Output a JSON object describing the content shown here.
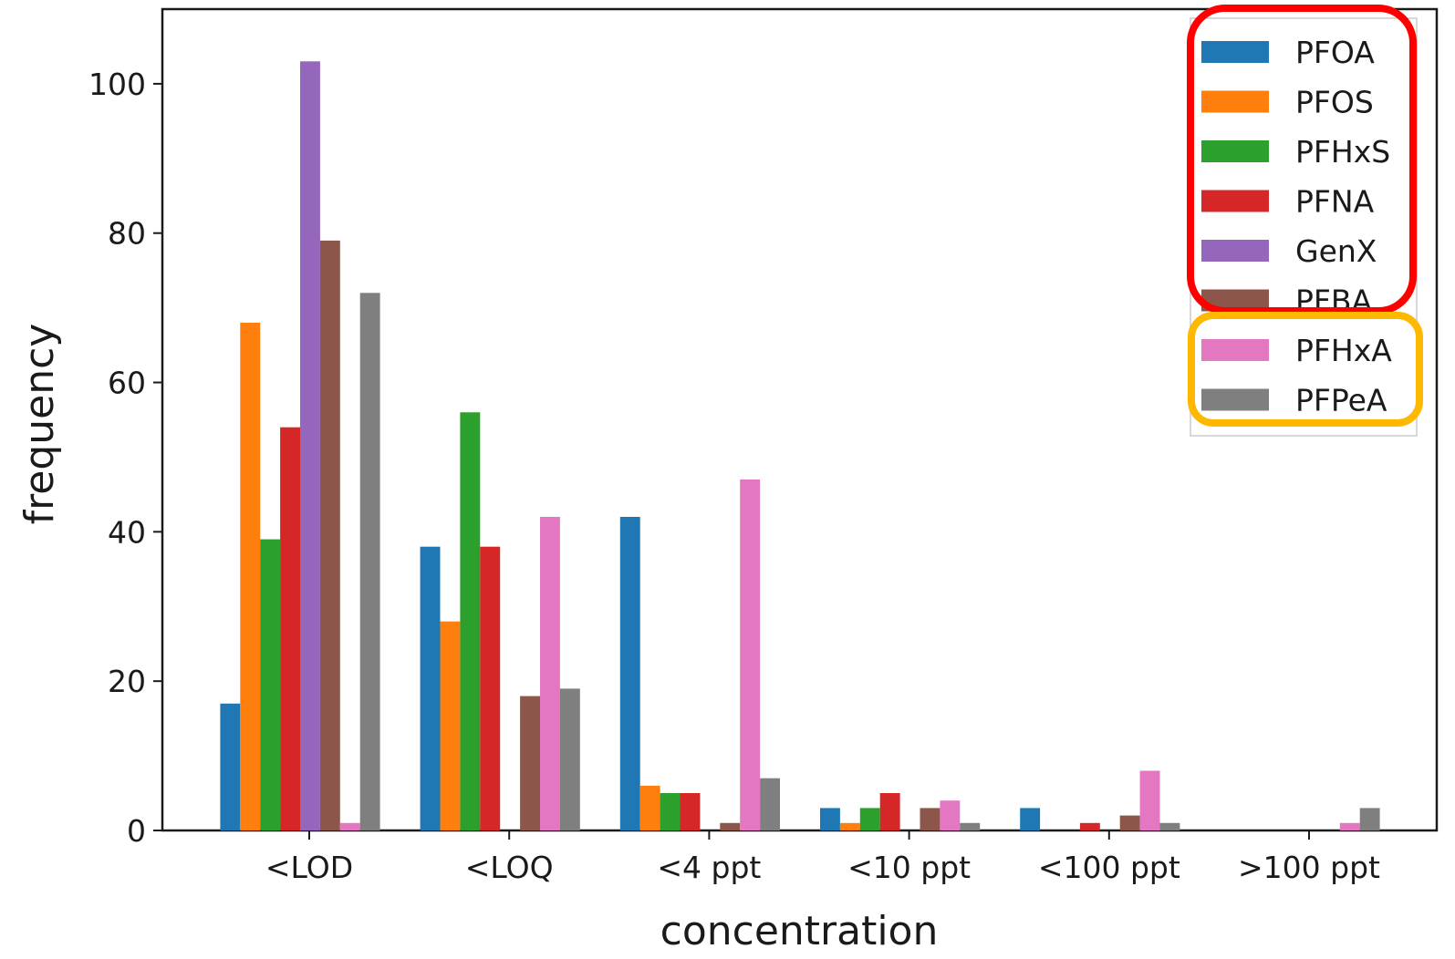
{
  "chart_data": {
    "type": "bar",
    "xlabel": "concentration",
    "ylabel": "frequency",
    "categories": [
      "<LOD",
      "<LOQ",
      "<4 ppt",
      "<10 ppt",
      "<100 ppt",
      ">100 ppt"
    ],
    "yticks": [
      0,
      20,
      40,
      60,
      80,
      100
    ],
    "ylim": [
      0,
      110
    ],
    "grid": false,
    "legend_position": "top-right",
    "series": [
      {
        "name": "PFOA",
        "color": "#1f77b4",
        "values": [
          17,
          38,
          42,
          3,
          3,
          0
        ]
      },
      {
        "name": "PFOS",
        "color": "#ff7f0e",
        "values": [
          68,
          28,
          6,
          1,
          0,
          0
        ]
      },
      {
        "name": "PFHxS",
        "color": "#2ca02c",
        "values": [
          39,
          56,
          5,
          3,
          0,
          0
        ]
      },
      {
        "name": "PFNA",
        "color": "#d62728",
        "values": [
          54,
          38,
          5,
          5,
          1,
          0
        ]
      },
      {
        "name": "GenX",
        "color": "#9467bd",
        "values": [
          103,
          0,
          0,
          0,
          0,
          0
        ]
      },
      {
        "name": "PFBA",
        "color": "#8c564b",
        "values": [
          79,
          18,
          1,
          3,
          2,
          0
        ]
      },
      {
        "name": "PFHxA",
        "color": "#e377c2",
        "values": [
          1,
          42,
          47,
          4,
          8,
          1
        ]
      },
      {
        "name": "PFPeA",
        "color": "#7f7f7f",
        "values": [
          72,
          19,
          7,
          1,
          1,
          3
        ]
      }
    ],
    "legend_highlights": [
      {
        "series": [
          "PFOA",
          "PFOS",
          "PFHxS",
          "PFNA",
          "GenX",
          "PFBA"
        ],
        "color": "#ff0000"
      },
      {
        "series": [
          "PFHxA",
          "PFPeA"
        ],
        "color": "#ffb800"
      }
    ]
  }
}
